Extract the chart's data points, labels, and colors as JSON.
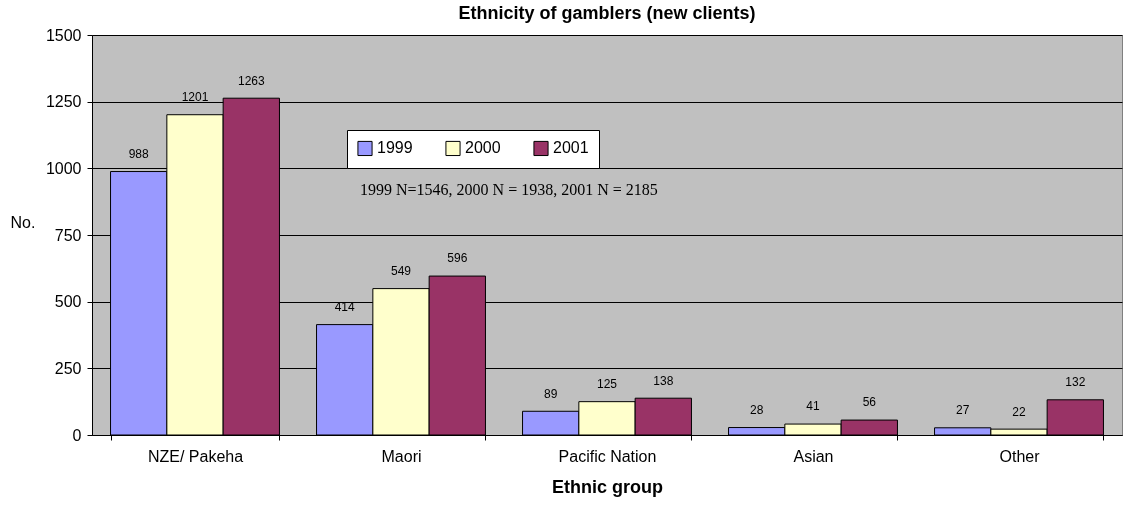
{
  "chart_data": {
    "type": "bar",
    "title": "Ethnicity of gamblers (new clients)",
    "xlabel": "Ethnic group",
    "ylabel": "No.",
    "categories": [
      "NZE/ Pakeha",
      "Maori",
      "Pacific Nation",
      "Asian",
      "Other"
    ],
    "series": [
      {
        "name": "1999",
        "color": "#9999ff",
        "values": [
          988,
          414,
          89,
          28,
          27
        ]
      },
      {
        "name": "2000",
        "color": "#ffffcc",
        "values": [
          1201,
          549,
          125,
          41,
          22
        ]
      },
      {
        "name": "2001",
        "color": "#993366",
        "values": [
          1263,
          596,
          138,
          56,
          132
        ]
      }
    ],
    "ylim": [
      0,
      1500
    ],
    "yticks": [
      0,
      250,
      500,
      750,
      1000,
      1250,
      1500
    ],
    "grid": "y",
    "legend": "top",
    "data_labels": true,
    "annotations": [
      "1999 N=1546, 2000 N = 1938, 2001 N = 2185"
    ]
  }
}
